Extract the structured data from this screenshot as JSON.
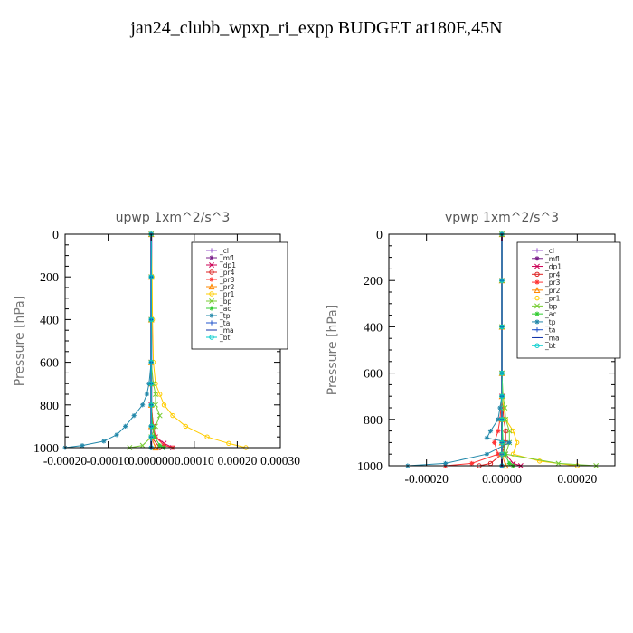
{
  "title": "jan24_clubb_wpxp_ri_expp  BUDGET at180E,45N",
  "chart_data": [
    {
      "type": "line",
      "title": "upwp   1xm^2/s^3",
      "ylabel": "Pressure [hPa]",
      "xlabel": "",
      "xlim": [
        -0.0002,
        0.0003
      ],
      "ylim": [
        1000,
        0
      ],
      "x_ticks": [
        "-0.00020",
        "-0.00010",
        "0.000000",
        "0.00010",
        "0.00020",
        "0.00030"
      ],
      "x_tick_values": [
        -0.0002,
        -0.0001,
        0,
        0.0001,
        0.0002,
        0.0003
      ],
      "y_ticks": [
        "0",
        "200",
        "400",
        "600",
        "800",
        "1000"
      ],
      "y_tick_values": [
        0,
        200,
        400,
        600,
        800,
        1000
      ],
      "legend_position": "top-right",
      "series": [
        {
          "name": "_cl",
          "color": "#9955cc",
          "marker": "+",
          "y": [
            0,
            200,
            400,
            600,
            700,
            800,
            900,
            950,
            1000
          ],
          "x": [
            0,
            0,
            0,
            0,
            0,
            0,
            0,
            0,
            0
          ]
        },
        {
          "name": "_mfl",
          "color": "#7a1f8a",
          "marker": "*",
          "y": [
            0,
            200,
            400,
            600,
            700,
            800,
            900,
            950,
            1000
          ],
          "x": [
            0,
            0,
            0,
            0,
            0,
            0,
            0,
            0,
            0
          ]
        },
        {
          "name": "_dp1",
          "color": "#cc0055",
          "marker": "x",
          "y": [
            0,
            200,
            400,
            600,
            700,
            800,
            900,
            950,
            980,
            1000
          ],
          "x": [
            0,
            0,
            0,
            0,
            0,
            0,
            5e-06,
            1e-05,
            3e-05,
            5e-05
          ]
        },
        {
          "name": "_pr4",
          "color": "#dd2222",
          "marker": "o",
          "y": [
            0,
            200,
            400,
            600,
            700,
            800,
            900,
            950,
            1000
          ],
          "x": [
            0,
            0,
            0,
            0,
            0,
            0,
            0,
            0,
            2e-05
          ]
        },
        {
          "name": "_pr3",
          "color": "#ff3333",
          "marker": "*",
          "y": [
            0,
            200,
            400,
            600,
            700,
            800,
            900,
            950,
            990,
            1000
          ],
          "x": [
            0,
            0,
            0,
            0,
            0,
            0,
            5e-06,
            1e-05,
            3e-05,
            5e-05
          ]
        },
        {
          "name": "_pr2",
          "color": "#ff8800",
          "marker": "^",
          "y": [
            0,
            200,
            400,
            600,
            700,
            800,
            900,
            950,
            1000
          ],
          "x": [
            0,
            0,
            0,
            0,
            0,
            0,
            0,
            0,
            1e-05
          ]
        },
        {
          "name": "_pr1",
          "color": "#ffcc00",
          "marker": "o",
          "y": [
            0,
            200,
            400,
            600,
            700,
            750,
            800,
            850,
            900,
            950,
            980,
            1000
          ],
          "x": [
            0,
            2e-06,
            3e-06,
            5e-06,
            1e-05,
            2e-05,
            3e-05,
            5e-05,
            8e-05,
            0.00013,
            0.00018,
            0.00022
          ]
        },
        {
          "name": "_bp",
          "color": "#77cc33",
          "marker": "x",
          "y": [
            0,
            200,
            400,
            600,
            700,
            750,
            800,
            850,
            900,
            950,
            990,
            1000
          ],
          "x": [
            0,
            0,
            0,
            0,
            5e-06,
            1e-05,
            1e-05,
            2e-05,
            1e-05,
            0,
            -2e-05,
            -5e-05
          ]
        },
        {
          "name": "_ac",
          "color": "#33cc33",
          "marker": "*",
          "y": [
            0,
            200,
            400,
            600,
            700,
            800,
            900,
            950,
            990,
            1000
          ],
          "x": [
            0,
            0,
            0,
            0,
            0,
            0,
            3e-06,
            8e-06,
            2e-05,
            3e-05
          ]
        },
        {
          "name": "_tp",
          "color": "#2288aa",
          "marker": "*",
          "y": [
            0,
            200,
            400,
            600,
            700,
            750,
            800,
            850,
            900,
            940,
            970,
            990,
            1000
          ],
          "x": [
            0,
            0,
            0,
            0,
            -5e-06,
            -1e-05,
            -2e-05,
            -4e-05,
            -6e-05,
            -8e-05,
            -0.00011,
            -0.00016,
            -0.0002
          ]
        },
        {
          "name": "_ta",
          "color": "#2255cc",
          "marker": "+",
          "y": [
            0,
            200,
            400,
            600,
            700,
            800,
            900,
            950,
            1000
          ],
          "x": [
            0,
            0,
            0,
            0,
            0,
            0,
            0,
            0,
            0
          ]
        },
        {
          "name": "_ma",
          "color": "#1133aa",
          "marker": "-",
          "y": [
            0,
            200,
            400,
            600,
            700,
            800,
            900,
            950,
            1000
          ],
          "x": [
            0,
            0,
            0,
            0,
            0,
            0,
            0,
            0,
            0
          ]
        },
        {
          "name": "_bt",
          "color": "#00cccc",
          "marker": "o",
          "y": [
            0,
            200,
            400,
            600,
            700,
            800,
            900,
            950,
            1000
          ],
          "x": [
            0,
            0,
            0,
            0,
            0,
            0,
            0,
            0,
            0
          ]
        }
      ]
    },
    {
      "type": "line",
      "title": "vpwp   1xm^2/s^3",
      "ylabel": "Pressure [hPa]",
      "xlabel": "",
      "xlim": [
        -0.0003,
        0.0003
      ],
      "ylim": [
        1000,
        0
      ],
      "x_ticks": [
        "-0.00020",
        "0.00000",
        "0.00020"
      ],
      "x_tick_values": [
        -0.0002,
        0,
        0.0002
      ],
      "y_ticks": [
        "0",
        "200",
        "400",
        "600",
        "800",
        "1000"
      ],
      "y_tick_values": [
        0,
        200,
        400,
        600,
        800,
        1000
      ],
      "legend_position": "top-right",
      "series": [
        {
          "name": "_cl",
          "color": "#9955cc",
          "marker": "+",
          "y": [
            0,
            200,
            400,
            600,
            700,
            800,
            900,
            950,
            1000
          ],
          "x": [
            0,
            0,
            0,
            0,
            0,
            0,
            0,
            0,
            0
          ]
        },
        {
          "name": "_mfl",
          "color": "#7a1f8a",
          "marker": "*",
          "y": [
            0,
            200,
            400,
            600,
            700,
            800,
            900,
            950,
            1000
          ],
          "x": [
            0,
            0,
            0,
            0,
            0,
            0,
            0,
            0,
            0
          ]
        },
        {
          "name": "_dp1",
          "color": "#cc0055",
          "marker": "x",
          "y": [
            0,
            200,
            400,
            600,
            700,
            800,
            900,
            950,
            990,
            1000
          ],
          "x": [
            0,
            0,
            0,
            0,
            0,
            0,
            0,
            1e-05,
            3e-05,
            5e-05
          ]
        },
        {
          "name": "_pr4",
          "color": "#dd2222",
          "marker": "o",
          "y": [
            0,
            200,
            400,
            600,
            700,
            800,
            850,
            900,
            950,
            990,
            1000
          ],
          "x": [
            0,
            0,
            0,
            0,
            0,
            5e-06,
            1e-05,
            1e-05,
            0,
            -3e-05,
            -6e-05
          ]
        },
        {
          "name": "_pr3",
          "color": "#ff3333",
          "marker": "*",
          "y": [
            0,
            200,
            400,
            600,
            700,
            800,
            850,
            900,
            950,
            990,
            1000
          ],
          "x": [
            0,
            0,
            0,
            0,
            0,
            -5e-06,
            -1e-05,
            -2e-05,
            -1e-05,
            -8e-05,
            -0.00015
          ]
        },
        {
          "name": "_pr2",
          "color": "#ff8800",
          "marker": "^",
          "y": [
            0,
            200,
            400,
            600,
            700,
            800,
            900,
            950,
            1000
          ],
          "x": [
            0,
            0,
            0,
            0,
            0,
            0,
            0,
            0,
            1e-05
          ]
        },
        {
          "name": "_pr1",
          "color": "#ffcc00",
          "marker": "o",
          "y": [
            0,
            200,
            400,
            600,
            700,
            750,
            800,
            850,
            900,
            950,
            980,
            1000
          ],
          "x": [
            0,
            0,
            0,
            0,
            0,
            5e-06,
            1e-05,
            3e-05,
            4e-05,
            3e-05,
            0.0001,
            0.0002
          ]
        },
        {
          "name": "_bp",
          "color": "#77cc33",
          "marker": "x",
          "y": [
            0,
            200,
            400,
            600,
            700,
            750,
            800,
            850,
            900,
            950,
            990,
            1000
          ],
          "x": [
            0,
            0,
            0,
            0,
            3e-06,
            8e-06,
            1e-05,
            2e-05,
            2e-05,
            1e-05,
            0.00015,
            0.00025
          ]
        },
        {
          "name": "_ac",
          "color": "#33cc33",
          "marker": "*",
          "y": [
            0,
            200,
            400,
            600,
            700,
            800,
            900,
            950,
            990,
            1000
          ],
          "x": [
            0,
            0,
            0,
            0,
            0,
            0,
            3e-06,
            8e-06,
            2e-05,
            3e-05
          ]
        },
        {
          "name": "_tp",
          "color": "#2288aa",
          "marker": "*",
          "y": [
            0,
            200,
            400,
            600,
            700,
            750,
            800,
            850,
            880,
            900,
            950,
            990,
            1000
          ],
          "x": [
            0,
            0,
            0,
            0,
            0,
            -5e-06,
            -1e-05,
            -3e-05,
            -4e-05,
            2e-05,
            -4e-05,
            -0.00015,
            -0.00025
          ]
        },
        {
          "name": "_ta",
          "color": "#2255cc",
          "marker": "+",
          "y": [
            0,
            200,
            400,
            600,
            700,
            800,
            900,
            950,
            1000
          ],
          "x": [
            0,
            0,
            0,
            0,
            0,
            0,
            0,
            0,
            0
          ]
        },
        {
          "name": "_ma",
          "color": "#1133aa",
          "marker": "-",
          "y": [
            0,
            200,
            400,
            600,
            700,
            800,
            900,
            950,
            1000
          ],
          "x": [
            0,
            0,
            0,
            0,
            0,
            0,
            0,
            0,
            0
          ]
        },
        {
          "name": "_bt",
          "color": "#00cccc",
          "marker": "o",
          "y": [
            0,
            200,
            400,
            600,
            700,
            800,
            900,
            950,
            1000
          ],
          "x": [
            0,
            0,
            0,
            0,
            0,
            0,
            0,
            0,
            0
          ]
        }
      ]
    }
  ]
}
